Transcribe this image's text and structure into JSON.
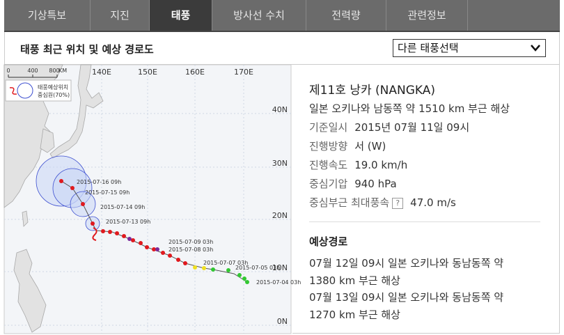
{
  "tabs": [
    "기상특보",
    "지진",
    "태풍",
    "방사선 수치",
    "전력량",
    "관련정보"
  ],
  "header": {
    "title": "태풍 최근 위치 및 예상 경로도",
    "dropdown": "다른 태풍선택"
  },
  "map": {
    "lon_labels": [
      "140E",
      "150E",
      "160E",
      "170E"
    ],
    "lat_labels": [
      "40N",
      "30N",
      "20N",
      "10N",
      "0N"
    ],
    "scale": [
      "0",
      "400",
      "800",
      "KM"
    ],
    "legend": [
      "태풍예상위치",
      "중심원(70%)"
    ],
    "track_labels": [
      "2015-07-16 09h",
      "2015-07-15 09h",
      "2015-07-14 09h",
      "2015-07-13 09h",
      "2015-07-09 03h",
      "2015-07-08 03h",
      "2015-07-07 03h",
      "2015-07-05 03h",
      "2015-07-04 03h"
    ]
  },
  "info": {
    "name": "제11호 낭카 (NANGKA)",
    "location": "일본 오키나와 남동쪽 약 1510 km 부근 해상",
    "rows": [
      {
        "label": "기준일시",
        "value": "2015년 07월 11일 09시"
      },
      {
        "label": "진행방향",
        "value": "서 (W)"
      },
      {
        "label": "진행속도",
        "value": "19.0 km/h"
      },
      {
        "label": "중심기압",
        "value": "940 hPa"
      },
      {
        "label": "중심부근 최대풍속",
        "help": "?",
        "value": "47.0 m/s"
      }
    ],
    "forecast_title": "예상경로",
    "forecast": [
      "07월 12일 09시 일본 오키나와 동남동쪽 약 1380 km 부근 해상",
      "07월 13일 09시 일본 오키나와 동남동쪽 약 1270 km 부근 해상"
    ]
  }
}
